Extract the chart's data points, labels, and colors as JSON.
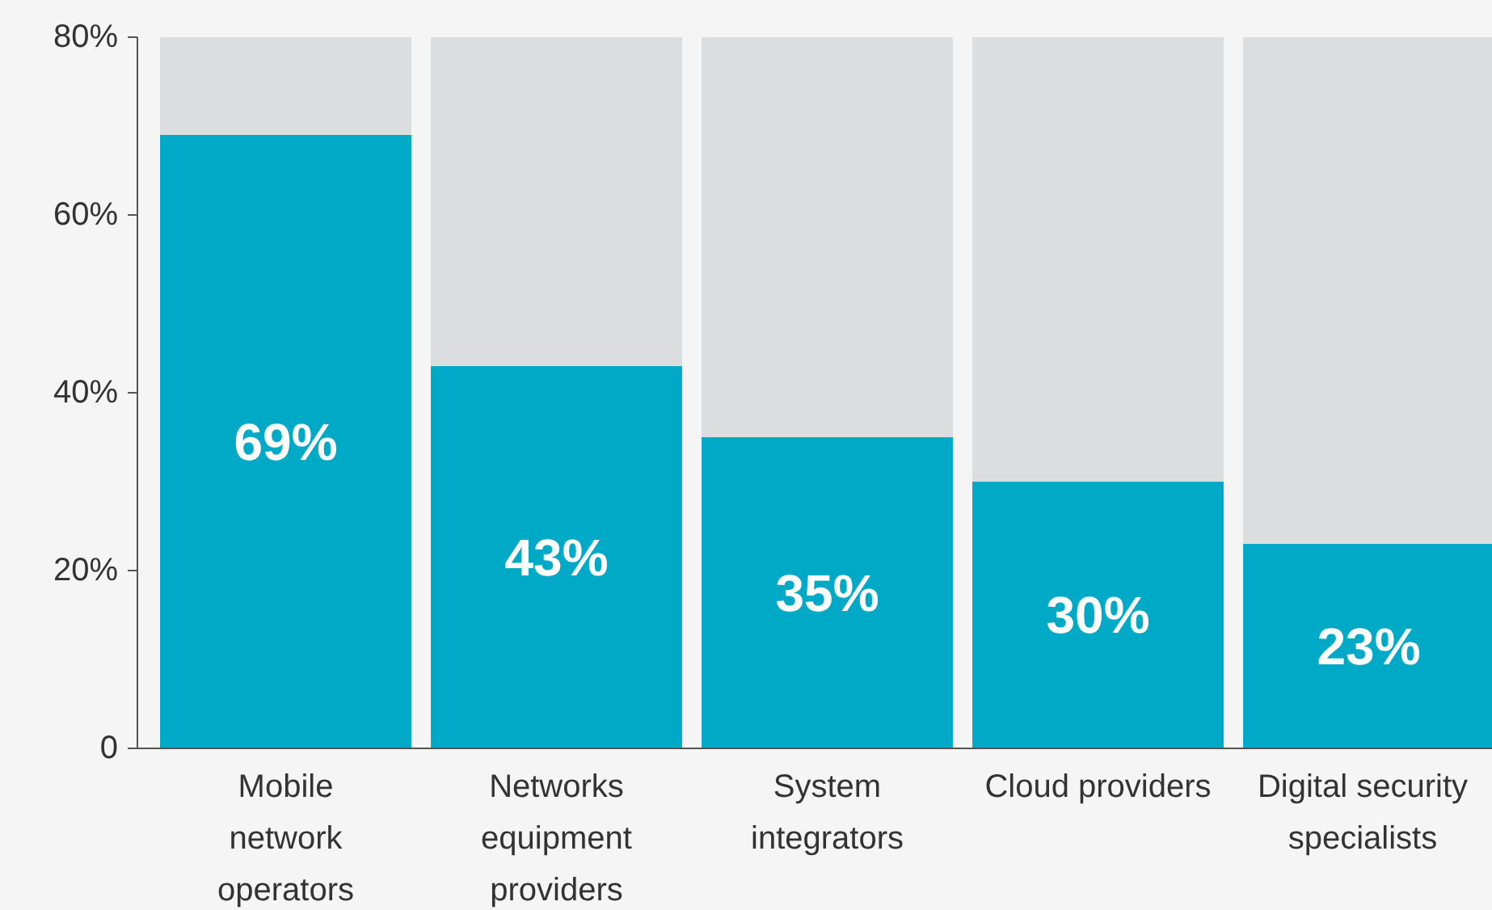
{
  "chart_data": {
    "type": "bar",
    "stacked": true,
    "categories": [
      "Mobile\nnetwork\noperators",
      "Networks\nequipment\nproviders",
      "System\nintegrators",
      "Cloud providers",
      "Digital security\nspecialists"
    ],
    "series": [
      {
        "color": "#00a9c6",
        "values": [
          69,
          43,
          35,
          30,
          23
        ],
        "value_labels": [
          "69%",
          "43%",
          "35%",
          "30%",
          "23%"
        ]
      },
      {
        "color": "#dcdddf",
        "values": [
          11,
          37,
          45,
          50,
          57
        ]
      }
    ],
    "ylim": [
      0,
      80
    ],
    "yticks": [
      {
        "value": 0,
        "label": "0"
      },
      {
        "value": 20,
        "label": "20%"
      },
      {
        "value": 40,
        "label": "40%"
      },
      {
        "value": 60,
        "label": "60%"
      },
      {
        "value": 80,
        "label": "80%"
      }
    ],
    "grid": false
  }
}
